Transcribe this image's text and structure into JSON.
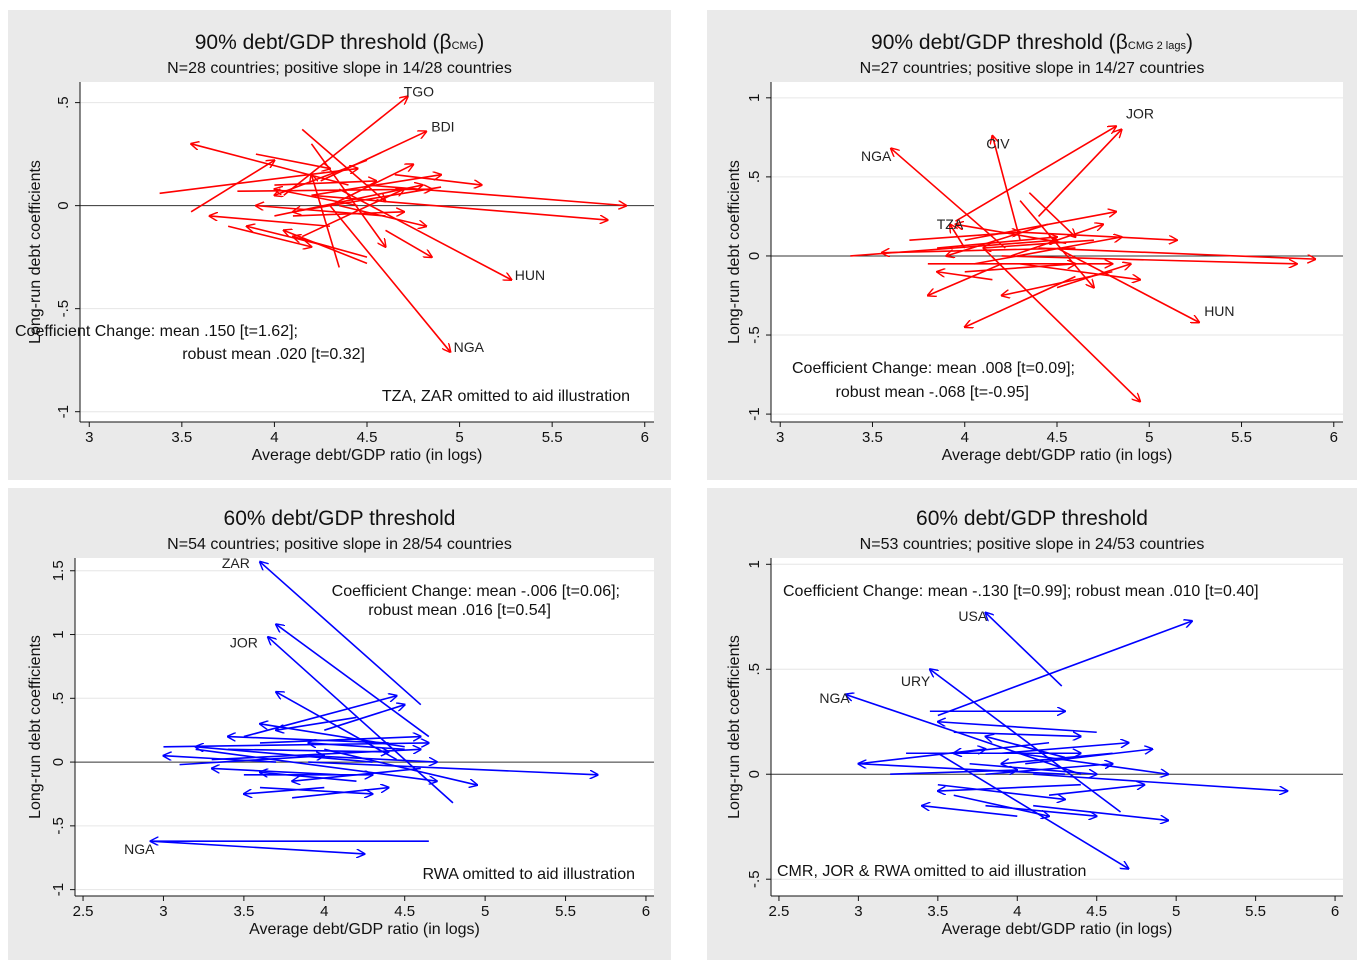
{
  "chart_data": [
    {
      "type": "scatter",
      "title": "90% debt/GDP threshold",
      "title_symbol": "β",
      "title_subscript": "CMG",
      "subtitle": "N=28 countries; positive slope in 14/28 countries",
      "xlabel": "Average debt/GDP ratio (in logs)",
      "ylabel": "Long-run debt coefficients",
      "xlim": [
        2.95,
        6.05
      ],
      "ylim": [
        -1.05,
        0.6
      ],
      "xticks": [
        3,
        3.5,
        4,
        4.5,
        5,
        5.5,
        6
      ],
      "xtick_labels": [
        "3",
        "3.5",
        "4",
        "4.5",
        "5",
        "5.5",
        "6"
      ],
      "yticks": [
        -1,
        -0.5,
        0,
        0.5
      ],
      "ytick_labels": [
        "-1",
        "-.5",
        "0",
        ".5"
      ],
      "grid": true,
      "color": "#ff0000",
      "annotations": [
        "Coefficient Change: mean .150 [t=1.62];",
        "robust mean .020 [t=0.32]",
        "TZA, ZAR omitted to aid illustration"
      ],
      "labels": [
        {
          "text": "TGO",
          "x": 4.78,
          "y": 0.53
        },
        {
          "text": "BDI",
          "x": 4.91,
          "y": 0.36
        },
        {
          "text": "HUN",
          "x": 5.38,
          "y": -0.36
        },
        {
          "text": "NGA",
          "x": 5.05,
          "y": -0.71
        }
      ],
      "arrows": [
        [
          4.05,
          0.05,
          4.72,
          0.53
        ],
        [
          4.25,
          0.12,
          4.82,
          0.36
        ],
        [
          4.35,
          0.08,
          5.28,
          -0.36
        ],
        [
          4.3,
          0.0,
          4.95,
          -0.71
        ],
        [
          3.38,
          0.06,
          4.45,
          0.18
        ],
        [
          4.5,
          0.1,
          5.9,
          0.0
        ],
        [
          4.2,
          0.05,
          5.8,
          -0.07
        ],
        [
          4.4,
          0.1,
          3.55,
          0.3
        ],
        [
          3.55,
          -0.03,
          4.0,
          0.22
        ],
        [
          4.15,
          0.37,
          4.6,
          0.02
        ],
        [
          4.2,
          0.3,
          4.6,
          -0.2
        ],
        [
          3.8,
          0.07,
          4.85,
          0.08
        ],
        [
          4.0,
          -0.05,
          4.8,
          0.1
        ],
        [
          4.3,
          -0.1,
          3.65,
          -0.05
        ],
        [
          4.35,
          0.0,
          4.82,
          -0.1
        ],
        [
          4.5,
          -0.25,
          4.1,
          -0.15
        ],
        [
          4.6,
          -0.12,
          4.85,
          -0.25
        ],
        [
          4.5,
          -0.28,
          4.05,
          -0.12
        ],
        [
          4.35,
          -0.3,
          4.2,
          0.15
        ],
        [
          4.9,
          0.09,
          4.1,
          -0.03
        ],
        [
          3.9,
          0.25,
          4.3,
          0.18
        ],
        [
          4.5,
          0.22,
          4.0,
          0.05
        ],
        [
          4.3,
          0.0,
          4.75,
          0.2
        ],
        [
          4.15,
          -0.15,
          4.7,
          0.08
        ],
        [
          3.75,
          -0.1,
          4.2,
          -0.2
        ],
        [
          4.65,
          0.15,
          5.12,
          0.1
        ],
        [
          4.1,
          -0.05,
          4.7,
          -0.03
        ],
        [
          4.6,
          -0.05,
          3.9,
          0.0
        ],
        [
          4.2,
          0.05,
          4.9,
          0.15
        ],
        [
          4.0,
          0.1,
          4.55,
          0.12
        ],
        [
          4.3,
          -0.2,
          3.85,
          -0.1
        ],
        [
          4.45,
          0.0,
          4.0,
          0.08
        ]
      ]
    },
    {
      "type": "scatter",
      "title": "90% debt/GDP threshold",
      "title_symbol": "β",
      "title_subscript": "CMG 2 lags",
      "subtitle": "N=27 countries; positive slope in 14/27 countries",
      "xlabel": "Average debt/GDP ratio (in logs)",
      "ylabel": "Long-run debt coefficients",
      "xlim": [
        2.95,
        6.05
      ],
      "ylim": [
        -1.05,
        1.1
      ],
      "xticks": [
        3,
        3.5,
        4,
        4.5,
        5,
        5.5,
        6
      ],
      "xtick_labels": [
        "3",
        "3.5",
        "4",
        "4.5",
        "5",
        "5.5",
        "6"
      ],
      "yticks": [
        -1,
        -0.5,
        0,
        0.5,
        1
      ],
      "ytick_labels": [
        "-1",
        "-.5",
        "0",
        ".5",
        "1"
      ],
      "grid": true,
      "color": "#ff0000",
      "annotations": [
        "Coefficient Change: mean .008 [t=0.09];",
        "robust mean -.068 [t=-0.95]"
      ],
      "labels": [
        {
          "text": "JOR",
          "x": 4.95,
          "y": 0.87
        },
        {
          "text": "CIV",
          "x": 4.18,
          "y": 0.68
        },
        {
          "text": "NGA",
          "x": 3.52,
          "y": 0.6
        },
        {
          "text": "TZA",
          "x": 3.92,
          "y": 0.17
        },
        {
          "text": "HUN",
          "x": 5.38,
          "y": -0.38
        }
      ],
      "arrows": [
        [
          3.95,
          0.22,
          4.82,
          0.82
        ],
        [
          4.3,
          0.1,
          4.15,
          0.76
        ],
        [
          4.22,
          0.05,
          3.6,
          0.68
        ],
        [
          4.0,
          0.05,
          3.92,
          0.2
        ],
        [
          4.5,
          0.05,
          5.27,
          -0.42
        ],
        [
          4.1,
          0.05,
          4.95,
          -0.92
        ],
        [
          3.38,
          0.0,
          4.5,
          0.1
        ],
        [
          4.4,
          0.05,
          5.9,
          -0.02
        ],
        [
          4.2,
          0.0,
          5.8,
          -0.05
        ],
        [
          4.3,
          0.15,
          5.15,
          0.1
        ],
        [
          4.4,
          0.25,
          4.85,
          0.8
        ],
        [
          4.05,
          -0.05,
          4.85,
          0.12
        ],
        [
          4.6,
          -0.13,
          4.0,
          -0.45
        ],
        [
          4.3,
          0.35,
          4.7,
          -0.2
        ],
        [
          4.35,
          0.4,
          4.6,
          0.12
        ],
        [
          4.2,
          -0.05,
          3.8,
          -0.25
        ],
        [
          4.0,
          0.1,
          4.82,
          0.28
        ],
        [
          4.55,
          0.08,
          3.95,
          0.2
        ],
        [
          3.8,
          -0.05,
          4.8,
          -0.05
        ],
        [
          4.7,
          0.1,
          4.1,
          0.05
        ],
        [
          4.15,
          -0.15,
          3.85,
          -0.1
        ],
        [
          4.5,
          -0.2,
          4.9,
          -0.05
        ],
        [
          3.7,
          0.1,
          4.3,
          0.15
        ],
        [
          4.45,
          0.2,
          3.9,
          0.0
        ],
        [
          4.25,
          0.0,
          4.75,
          0.2
        ],
        [
          4.6,
          0.05,
          3.55,
          0.02
        ],
        [
          4.0,
          -0.1,
          4.6,
          -0.05
        ],
        [
          4.8,
          -0.1,
          4.2,
          -0.25
        ],
        [
          4.3,
          -0.05,
          4.95,
          -0.15
        ],
        [
          3.85,
          0.05,
          4.5,
          0.12
        ]
      ]
    },
    {
      "type": "scatter",
      "title": "60% debt/GDP threshold",
      "subtitle": "N=54 countries; positive slope in 28/54 countries",
      "xlabel": "Average debt/GDP ratio (in logs)",
      "ylabel": "Long-run debt coefficients",
      "xlim": [
        2.45,
        6.05
      ],
      "ylim": [
        -1.05,
        1.6
      ],
      "xticks": [
        2.5,
        3,
        3.5,
        4,
        4.5,
        5,
        5.5,
        6
      ],
      "xtick_labels": [
        "2.5",
        "3",
        "3.5",
        "4",
        "4.5",
        "5",
        "5.5",
        "6"
      ],
      "yticks": [
        -1,
        -0.5,
        0,
        0.5,
        1,
        1.5
      ],
      "ytick_labels": [
        "-1",
        "-.5",
        "0",
        ".5",
        "1",
        "1.5"
      ],
      "grid": true,
      "color": "#0000ff",
      "annotations": [
        "Coefficient Change: mean -.006 [t=0.06];",
        "robust mean .016 [t=0.54]",
        "RWA omitted to aid illustration"
      ],
      "labels": [
        {
          "text": "ZAR",
          "x": 3.45,
          "y": 1.52
        },
        {
          "text": "JOR",
          "x": 3.5,
          "y": 0.9
        },
        {
          "text": "NGA",
          "x": 2.85,
          "y": -0.72
        }
      ],
      "arrows": [
        [
          4.6,
          0.45,
          3.6,
          1.57
        ],
        [
          4.8,
          -0.32,
          3.65,
          0.98
        ],
        [
          4.65,
          0.2,
          3.7,
          1.08
        ],
        [
          4.45,
          0.02,
          3.7,
          0.55
        ],
        [
          4.65,
          -0.62,
          2.92,
          -0.62
        ],
        [
          2.92,
          -0.62,
          4.25,
          -0.72
        ],
        [
          3.0,
          0.12,
          4.65,
          0.15
        ],
        [
          3.2,
          0.1,
          4.7,
          -0.15
        ],
        [
          3.9,
          0.0,
          5.7,
          -0.1
        ],
        [
          4.0,
          0.1,
          4.95,
          -0.18
        ],
        [
          3.5,
          0.2,
          4.45,
          0.52
        ],
        [
          3.7,
          0.0,
          3.0,
          0.05
        ],
        [
          4.4,
          0.15,
          3.4,
          0.2
        ],
        [
          3.6,
          -0.2,
          4.3,
          -0.25
        ],
        [
          4.5,
          0.12,
          3.6,
          0.3
        ],
        [
          4.1,
          -0.1,
          3.3,
          -0.05
        ],
        [
          3.4,
          0.1,
          4.4,
          0.08
        ],
        [
          4.2,
          0.35,
          3.7,
          0.25
        ],
        [
          3.8,
          -0.28,
          4.4,
          -0.2
        ],
        [
          4.6,
          -0.05,
          3.8,
          -0.15
        ],
        [
          3.3,
          0.02,
          4.6,
          0.1
        ],
        [
          4.0,
          0.25,
          4.5,
          0.45
        ],
        [
          3.5,
          -0.1,
          4.3,
          -0.1
        ],
        [
          4.3,
          0.0,
          3.2,
          0.12
        ],
        [
          3.6,
          0.15,
          4.6,
          0.2
        ],
        [
          4.0,
          -0.2,
          3.5,
          -0.25
        ],
        [
          3.9,
          0.05,
          4.7,
          0.0
        ],
        [
          4.5,
          0.1,
          3.9,
          0.15
        ],
        [
          3.1,
          -0.02,
          4.0,
          0.05
        ],
        [
          4.2,
          -0.15,
          3.6,
          -0.08
        ]
      ]
    },
    {
      "type": "scatter",
      "title": "60% debt/GDP threshold",
      "subtitle": "N=53 countries; positive slope in 24/53 countries",
      "xlabel": "Average debt/GDP ratio (in logs)",
      "ylabel": "Long-run debt coefficients",
      "xlim": [
        2.45,
        6.05
      ],
      "ylim": [
        -0.58,
        1.03
      ],
      "xticks": [
        2.5,
        3,
        3.5,
        4,
        4.5,
        5,
        5.5,
        6
      ],
      "xtick_labels": [
        "2.5",
        "3",
        "3.5",
        "4",
        "4.5",
        "5",
        "5.5",
        "6"
      ],
      "yticks": [
        -0.5,
        0,
        0.5,
        1
      ],
      "ytick_labels": [
        "-.5",
        "0",
        ".5",
        "1"
      ],
      "grid": true,
      "color": "#0000ff",
      "annotations": [
        "Coefficient Change: mean -.130 [t=0.99]; robust mean .010 [t=0.40]",
        "CMR, JOR & RWA omitted to aid illustration"
      ],
      "labels": [
        {
          "text": "USA",
          "x": 3.72,
          "y": 0.73
        },
        {
          "text": "URY",
          "x": 3.36,
          "y": 0.42
        },
        {
          "text": "NGA",
          "x": 2.85,
          "y": 0.34
        }
      ],
      "arrows": [
        [
          4.28,
          0.42,
          3.8,
          0.77
        ],
        [
          4.65,
          -0.18,
          3.45,
          0.5
        ],
        [
          4.4,
          0.0,
          2.92,
          0.38
        ],
        [
          3.5,
          0.28,
          5.1,
          0.73
        ],
        [
          4.1,
          0.0,
          5.7,
          -0.08
        ],
        [
          4.0,
          0.1,
          4.95,
          0.0
        ],
        [
          3.5,
          0.1,
          4.7,
          -0.45
        ],
        [
          3.3,
          0.1,
          4.4,
          0.1
        ],
        [
          4.3,
          0.0,
          3.0,
          0.05
        ],
        [
          3.6,
          -0.1,
          4.2,
          -0.2
        ],
        [
          4.5,
          0.2,
          3.5,
          0.25
        ],
        [
          3.8,
          0.0,
          4.6,
          0.05
        ],
        [
          4.1,
          -0.15,
          4.95,
          -0.22
        ],
        [
          3.45,
          0.3,
          4.3,
          0.3
        ],
        [
          4.2,
          0.15,
          3.6,
          0.1
        ],
        [
          3.2,
          0.0,
          4.0,
          0.02
        ],
        [
          4.4,
          -0.05,
          3.5,
          -0.08
        ],
        [
          3.9,
          0.1,
          4.7,
          0.15
        ],
        [
          4.0,
          -0.2,
          3.4,
          -0.15
        ],
        [
          3.7,
          0.05,
          4.5,
          0.0
        ],
        [
          4.3,
          0.08,
          3.8,
          0.18
        ],
        [
          3.5,
          -0.05,
          4.3,
          -0.12
        ],
        [
          4.6,
          0.1,
          3.9,
          0.05
        ],
        [
          3.0,
          0.05,
          3.8,
          0.12
        ],
        [
          4.2,
          -0.1,
          4.8,
          -0.05
        ],
        [
          3.6,
          0.2,
          4.4,
          0.18
        ],
        [
          4.05,
          0.05,
          4.85,
          0.12
        ],
        [
          3.8,
          -0.15,
          4.5,
          -0.2
        ]
      ]
    }
  ]
}
